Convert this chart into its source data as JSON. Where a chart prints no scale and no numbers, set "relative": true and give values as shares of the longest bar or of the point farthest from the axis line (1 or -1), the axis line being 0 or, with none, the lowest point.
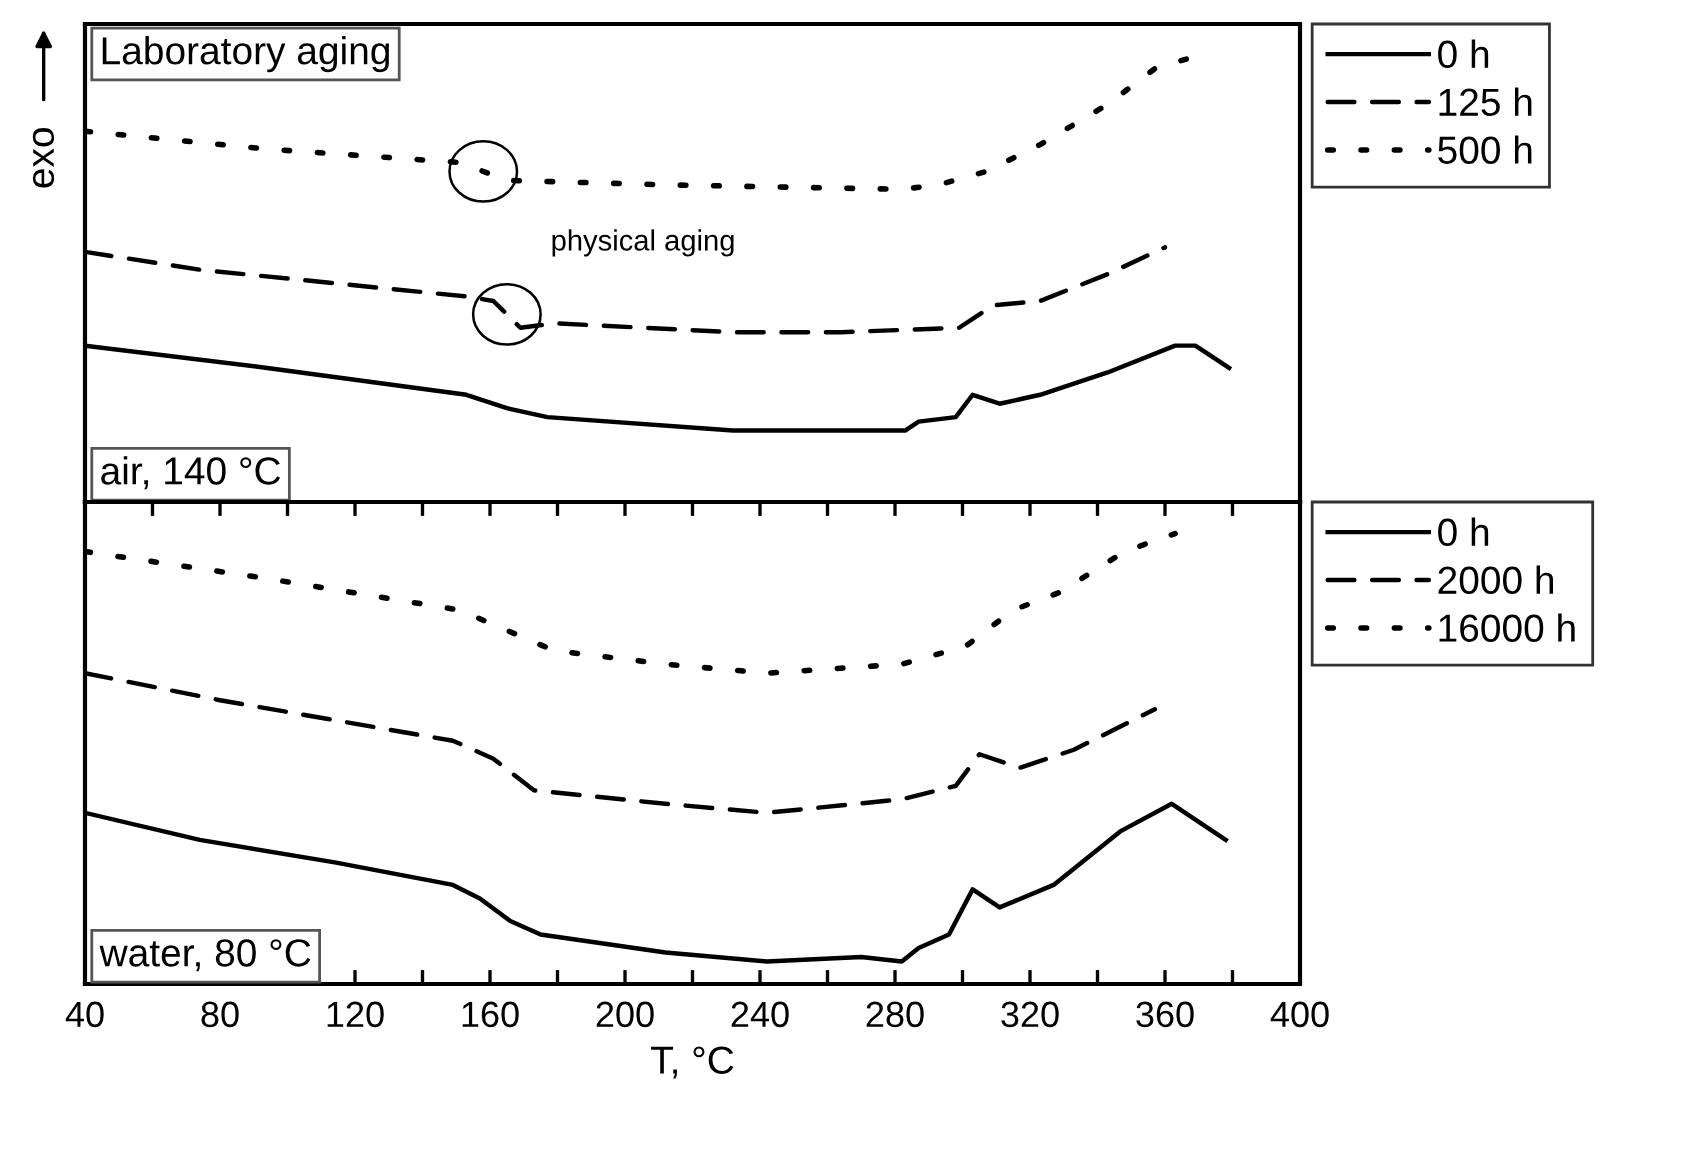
{
  "chart_data": [
    {
      "type": "line",
      "relative": true,
      "ylabel": "exo",
      "xlim": [
        40,
        400
      ],
      "tick_labels": false,
      "legend": "top right",
      "annotations": [
        "Laboratory aging",
        "physical aging",
        "air, 140 °C"
      ],
      "series": [
        {
          "name": "0 h",
          "color": "#000000",
          "line_style": "solid",
          "x": [
            40,
            94,
            153,
            165,
            177,
            232,
            264,
            283,
            287,
            298,
            303,
            311,
            323,
            343,
            363,
            369,
            379
          ],
          "values": [
            0.35,
            0.3,
            0.24,
            0.21,
            0.19,
            0.16,
            0.16,
            0.16,
            0.18,
            0.19,
            0.24,
            0.22,
            0.24,
            0.29,
            0.35,
            0.35,
            0.3
          ]
        },
        {
          "name": "125 h",
          "color": "#000000",
          "line_style": "dashed",
          "x": [
            40,
            74,
            153,
            161,
            169,
            179,
            232,
            264,
            299,
            309,
            323,
            343,
            360
          ],
          "values": [
            0.56,
            0.52,
            0.46,
            0.45,
            0.39,
            0.4,
            0.38,
            0.38,
            0.39,
            0.44,
            0.45,
            0.51,
            0.57
          ]
        },
        {
          "name": "500 h",
          "color": "#000000",
          "line_style": "dotted",
          "x": [
            40,
            94,
            151,
            165,
            212,
            282,
            293,
            307,
            323,
            343,
            357,
            370
          ],
          "values": [
            0.83,
            0.79,
            0.76,
            0.72,
            0.71,
            0.7,
            0.71,
            0.74,
            0.8,
            0.89,
            0.97,
            1
          ]
        }
      ]
    },
    {
      "type": "line",
      "relative": true,
      "xlabel": "T, °C",
      "xlim": [
        40,
        400
      ],
      "xticks": [
        40,
        {
          "value": 60,
          "label": null
        },
        80,
        {
          "value": 100,
          "label": null
        },
        120,
        {
          "value": 140,
          "label": null
        },
        160,
        {
          "value": 180,
          "label": null
        },
        200,
        {
          "value": 220,
          "label": null
        },
        240,
        {
          "value": 260,
          "label": null
        },
        280,
        {
          "value": 300,
          "label": null
        },
        320,
        {
          "value": 340,
          "label": null
        },
        360,
        {
          "value": 380,
          "label": null
        },
        400
      ],
      "tick_labels": "x",
      "legend": "top right",
      "annotations": [
        "water, 80 °C"
      ],
      "series": [
        {
          "name": "0 h",
          "color": "#000000",
          "line_style": "solid",
          "x": [
            40,
            74,
            114,
            149,
            157,
            166,
            175,
            212,
            242,
            270,
            282,
            287,
            296,
            303,
            311,
            327,
            347,
            362,
            378
          ],
          "values": [
            0.38,
            0.32,
            0.27,
            0.22,
            0.19,
            0.14,
            0.11,
            0.07,
            0.05,
            0.06,
            0.05,
            0.08,
            0.11,
            0.21,
            0.17,
            0.22,
            0.34,
            0.4,
            0.32
          ]
        },
        {
          "name": "2000 h",
          "color": "#000000",
          "line_style": "dashed",
          "x": [
            40,
            80,
            149,
            161,
            173,
            212,
            242,
            282,
            298,
            305,
            317,
            333,
            357
          ],
          "values": [
            0.69,
            0.63,
            0.54,
            0.5,
            0.43,
            0.4,
            0.38,
            0.41,
            0.44,
            0.51,
            0.48,
            0.52,
            0.61
          ]
        },
        {
          "name": "16000 h",
          "color": "#000000",
          "line_style": "dotted",
          "x": [
            40,
            94,
            151,
            179,
            212,
            242,
            282,
            301,
            315,
            329,
            348,
            363
          ],
          "values": [
            0.96,
            0.9,
            0.83,
            0.74,
            0.71,
            0.69,
            0.71,
            0.75,
            0.83,
            0.87,
            0.96,
            1
          ]
        }
      ]
    }
  ]
}
